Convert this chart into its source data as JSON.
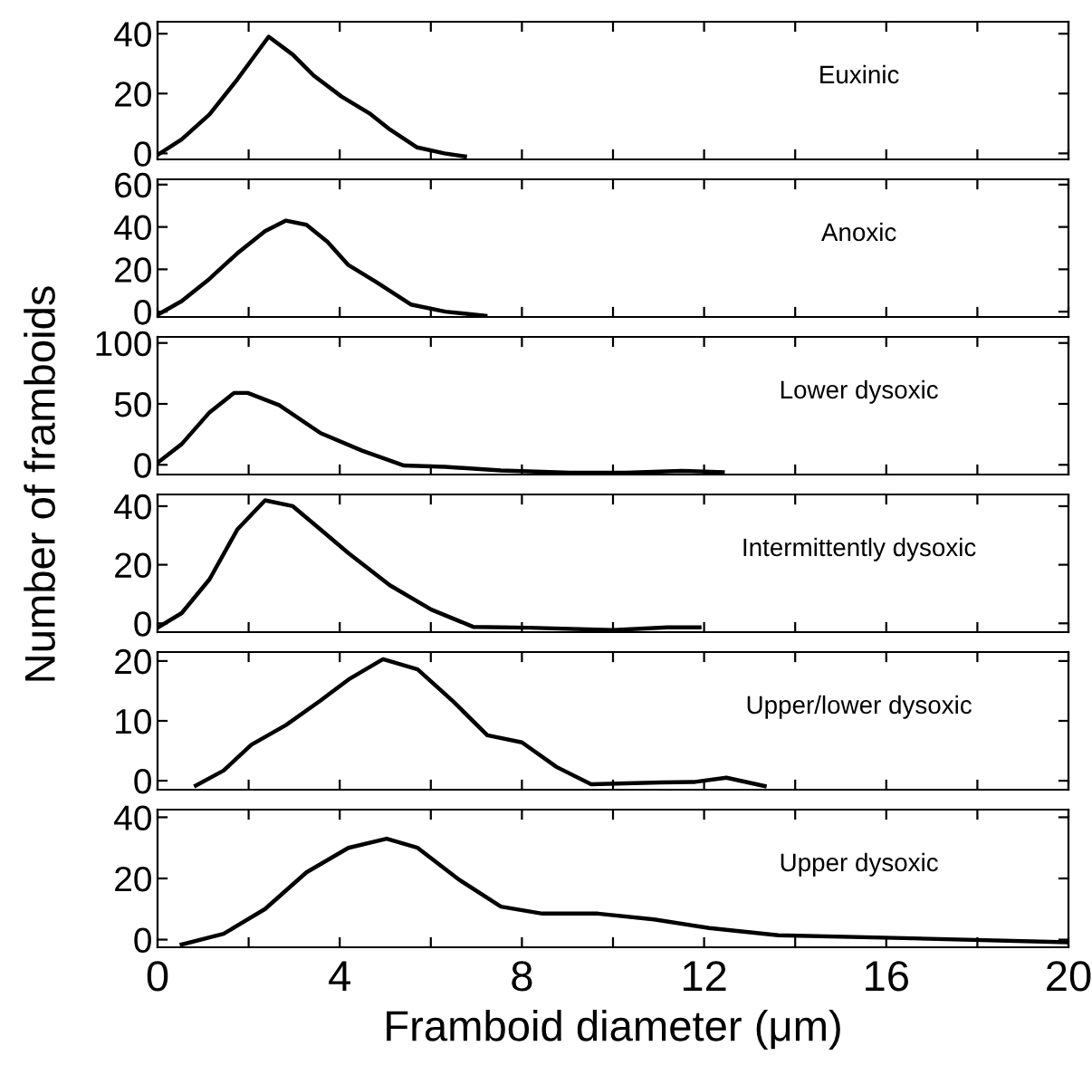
{
  "chart_data": [
    {
      "type": "line",
      "ylabel": "Number of framboids",
      "annotations": [
        "Euxinic"
      ],
      "tick_labels": "y",
      "xlim": [
        0,
        20
      ],
      "xticks": [
        {
          "value": 0,
          "label": null
        },
        {
          "value": 2,
          "label": null
        },
        {
          "value": 4,
          "label": null
        },
        {
          "value": 6,
          "label": null
        },
        {
          "value": 8,
          "label": null
        },
        {
          "value": 10,
          "label": null
        },
        {
          "value": 12,
          "label": null
        },
        {
          "value": 14,
          "label": null
        },
        {
          "value": 16,
          "label": null
        },
        {
          "value": 18,
          "label": null
        },
        {
          "value": 20,
          "label": null
        }
      ],
      "ylim": [
        -2,
        44
      ],
      "yticks": [
        0,
        20,
        40
      ],
      "grid": false,
      "legend": false,
      "series": [
        {
          "color": "#000000",
          "x": [
            0,
            0.53,
            1.14,
            1.75,
            2.44,
            2.97,
            3.43,
            4.04,
            4.65,
            5.1,
            5.7,
            6.3,
            6.75
          ],
          "values": [
            -0.5,
            4.7,
            13,
            24.7,
            39,
            33,
            26,
            19,
            13.4,
            8,
            2,
            0,
            -1
          ]
        }
      ]
    },
    {
      "type": "line",
      "annotations": [
        "Anoxic"
      ],
      "tick_labels": "y",
      "xlim": [
        0,
        20
      ],
      "xticks": [
        {
          "value": 0,
          "label": null
        },
        {
          "value": 2,
          "label": null
        },
        {
          "value": 4,
          "label": null
        },
        {
          "value": 6,
          "label": null
        },
        {
          "value": 8,
          "label": null
        },
        {
          "value": 10,
          "label": null
        },
        {
          "value": 12,
          "label": null
        },
        {
          "value": 14,
          "label": null
        },
        {
          "value": 16,
          "label": null
        },
        {
          "value": 18,
          "label": null
        },
        {
          "value": 20,
          "label": null
        }
      ],
      "ylim": [
        -2.5,
        62.5
      ],
      "yticks": [
        0,
        20,
        40,
        60
      ],
      "grid": false,
      "legend": false,
      "series": [
        {
          "color": "#000000",
          "x": [
            0,
            0.53,
            1.14,
            1.75,
            2.36,
            2.82,
            3.27,
            3.73,
            4.19,
            4.8,
            5.56,
            6.32,
            7.2
          ],
          "values": [
            -1.5,
            5,
            15.5,
            27.5,
            38,
            43,
            41,
            33,
            22,
            14,
            3.4,
            0,
            -2
          ]
        }
      ]
    },
    {
      "type": "line",
      "annotations": [
        "Lower dysoxic"
      ],
      "tick_labels": "y",
      "xlim": [
        0,
        20
      ],
      "xticks": [
        {
          "value": 0,
          "label": null
        },
        {
          "value": 2,
          "label": null
        },
        {
          "value": 4,
          "label": null
        },
        {
          "value": 6,
          "label": null
        },
        {
          "value": 8,
          "label": null
        },
        {
          "value": 10,
          "label": null
        },
        {
          "value": 12,
          "label": null
        },
        {
          "value": 14,
          "label": null
        },
        {
          "value": 16,
          "label": null
        },
        {
          "value": 18,
          "label": null
        },
        {
          "value": 20,
          "label": null
        }
      ],
      "ylim": [
        -8,
        105
      ],
      "yticks": [
        0,
        50,
        100
      ],
      "grid": false,
      "legend": false,
      "series": [
        {
          "color": "#000000",
          "x": [
            0,
            0.53,
            1.14,
            1.68,
            1.98,
            2.67,
            3.58,
            4.49,
            5.41,
            6.32,
            7.54,
            9.06,
            10.28,
            11.5,
            12.41
          ],
          "values": [
            1.7,
            17,
            43,
            59,
            59,
            49,
            26,
            11.6,
            -0.6,
            -1.7,
            -4.6,
            -6.5,
            -6.5,
            -5,
            -6
          ]
        }
      ]
    },
    {
      "type": "line",
      "annotations": [
        "Intermittently dysoxic"
      ],
      "tick_labels": "y",
      "xlim": [
        0,
        20
      ],
      "xticks": [
        {
          "value": 0,
          "label": null
        },
        {
          "value": 2,
          "label": null
        },
        {
          "value": 4,
          "label": null
        },
        {
          "value": 6,
          "label": null
        },
        {
          "value": 8,
          "label": null
        },
        {
          "value": 10,
          "label": null
        },
        {
          "value": 12,
          "label": null
        },
        {
          "value": 14,
          "label": null
        },
        {
          "value": 16,
          "label": null
        },
        {
          "value": 18,
          "label": null
        },
        {
          "value": 20,
          "label": null
        }
      ],
      "ylim": [
        -3,
        44
      ],
      "yticks": [
        0,
        20,
        40
      ],
      "grid": false,
      "legend": false,
      "series": [
        {
          "color": "#000000",
          "x": [
            0,
            0.53,
            1.14,
            1.75,
            2.36,
            2.97,
            3.58,
            4.19,
            5.1,
            6.01,
            6.93,
            8.15,
            10.0,
            11.2,
            11.9
          ],
          "values": [
            -1.5,
            3.5,
            15,
            32,
            42,
            40,
            32,
            24,
            13,
            4.7,
            -1.2,
            -1.5,
            -2.3,
            -1.4,
            -1.4
          ]
        }
      ]
    },
    {
      "type": "line",
      "annotations": [
        "Upper/lower dysoxic"
      ],
      "tick_labels": "y",
      "xlim": [
        0,
        20
      ],
      "xticks": [
        {
          "value": 0,
          "label": null
        },
        {
          "value": 2,
          "label": null
        },
        {
          "value": 4,
          "label": null
        },
        {
          "value": 6,
          "label": null
        },
        {
          "value": 8,
          "label": null
        },
        {
          "value": 10,
          "label": null
        },
        {
          "value": 12,
          "label": null
        },
        {
          "value": 14,
          "label": null
        },
        {
          "value": 16,
          "label": null
        },
        {
          "value": 18,
          "label": null
        },
        {
          "value": 20,
          "label": null
        }
      ],
      "ylim": [
        -1.5,
        21.5
      ],
      "yticks": [
        0,
        10,
        20
      ],
      "grid": false,
      "legend": false,
      "series": [
        {
          "color": "#000000",
          "x": [
            0.84,
            1.45,
            2.06,
            2.82,
            3.58,
            4.19,
            4.95,
            5.71,
            6.47,
            7.24,
            8.0,
            8.76,
            9.52,
            11.04,
            11.8,
            12.49,
            13.33
          ],
          "values": [
            -0.8,
            1.7,
            6,
            9.3,
            13.4,
            16.9,
            20.3,
            18.6,
            13.4,
            7.6,
            6.4,
            2.3,
            -0.6,
            -0.3,
            -0.2,
            0.5,
            -0.9
          ]
        }
      ]
    },
    {
      "type": "line",
      "xlabel": "Framboid diameter (μm)",
      "annotations": [
        "Upper dysoxic"
      ],
      "xlim": [
        0,
        20
      ],
      "xticks": [
        0,
        {
          "value": 2,
          "label": null
        },
        4,
        {
          "value": 6,
          "label": null
        },
        8,
        {
          "value": 10,
          "label": null
        },
        12,
        {
          "value": 14,
          "label": null
        },
        16,
        {
          "value": 18,
          "label": null
        },
        20
      ],
      "ylim": [
        -2.5,
        42.5
      ],
      "yticks": [
        0,
        20,
        40
      ],
      "grid": false,
      "legend": false,
      "series": [
        {
          "color": "#000000",
          "x": [
            0.53,
            1.45,
            2.36,
            3.27,
            4.19,
            5.03,
            5.71,
            6.63,
            7.54,
            8.45,
            9.67,
            10.9,
            12.11,
            13.63,
            16.37,
            20
          ],
          "values": [
            -1.6,
            1.9,
            10,
            22,
            30,
            33,
            30,
            19.5,
            10.8,
            8.5,
            8.5,
            6.6,
            3.8,
            1.4,
            0.5,
            -0.9
          ]
        }
      ]
    }
  ]
}
